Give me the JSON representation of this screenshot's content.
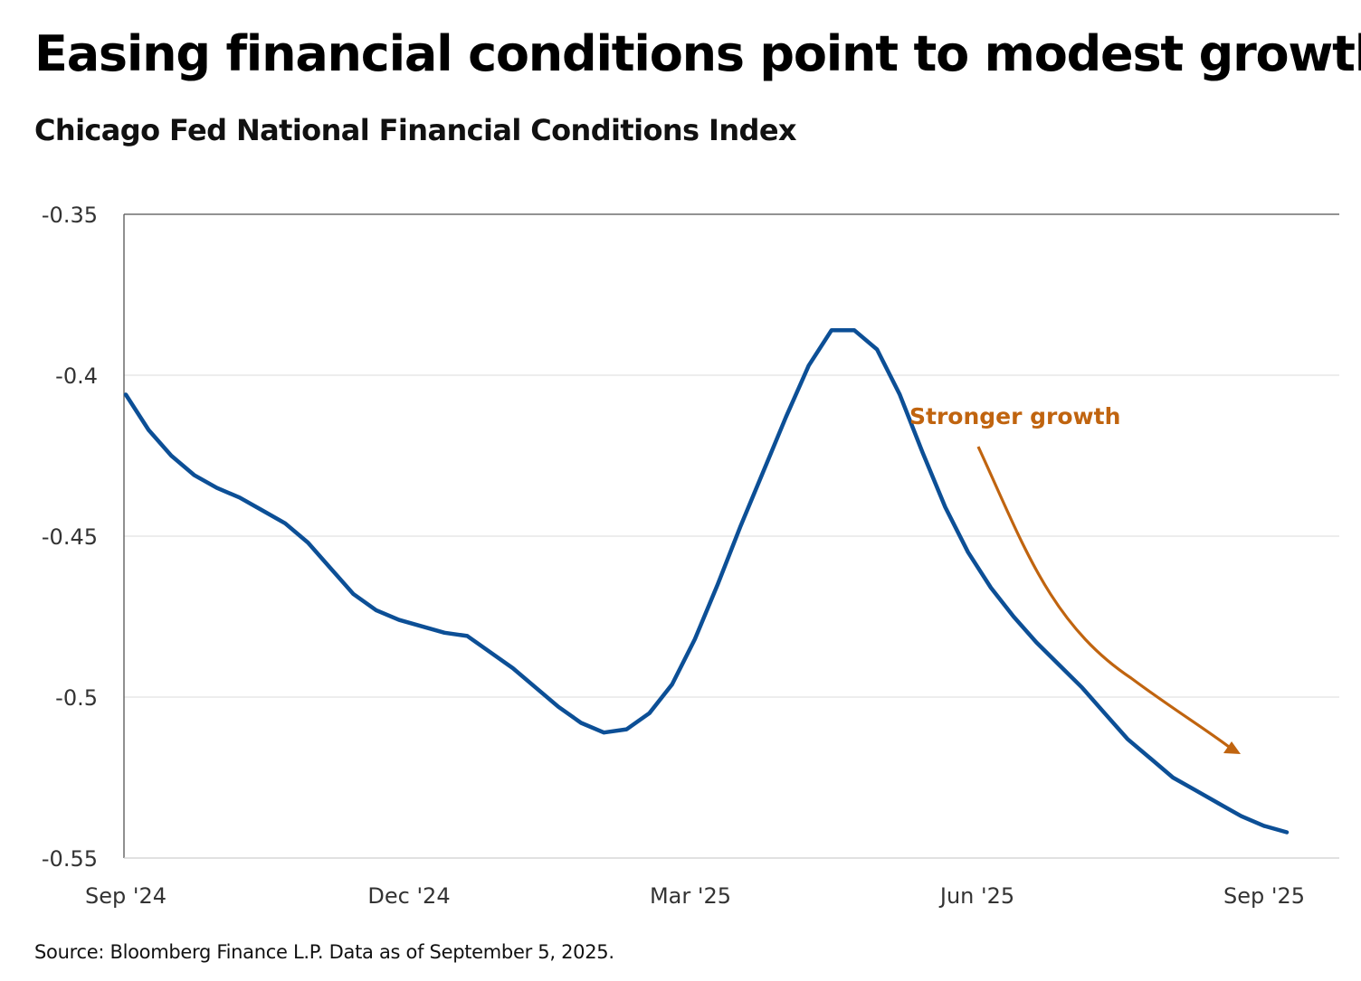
{
  "chart_data": {
    "type": "line",
    "title": "Easing financial conditions point to modest growth",
    "subtitle": "Chicago Fed National Financial Conditions Index",
    "xlabel": "",
    "ylabel": "",
    "x_ticks": [
      "Sep '24",
      "Dec '24",
      "Mar '25",
      "Jun '25",
      "Sep '25"
    ],
    "y_ticks": [
      "-0.35",
      "-0.4",
      "-0.45",
      "-0.5",
      "-0.55"
    ],
    "ylim": [
      -0.55,
      -0.35
    ],
    "grid": true,
    "series": [
      {
        "name": "Chicago Fed National Financial Conditions Index",
        "color": "#0c4f96",
        "x_weeks": [
          0,
          1,
          2,
          3,
          4,
          5,
          6,
          7,
          8,
          9,
          10,
          11,
          12,
          13,
          14,
          15,
          16,
          17,
          18,
          19,
          20,
          21,
          22,
          23,
          24,
          25,
          26,
          27,
          28,
          29,
          30,
          31,
          32,
          33,
          34,
          35,
          36,
          37,
          38,
          39,
          40,
          41,
          42,
          43,
          44,
          45,
          46,
          47,
          48,
          49,
          50,
          51
        ],
        "values": [
          -0.406,
          -0.417,
          -0.425,
          -0.431,
          -0.435,
          -0.438,
          -0.442,
          -0.446,
          -0.452,
          -0.46,
          -0.468,
          -0.473,
          -0.476,
          -0.478,
          -0.48,
          -0.481,
          -0.486,
          -0.491,
          -0.497,
          -0.503,
          -0.508,
          -0.511,
          -0.51,
          -0.505,
          -0.496,
          -0.482,
          -0.465,
          -0.447,
          -0.43,
          -0.413,
          -0.397,
          -0.386,
          -0.386,
          -0.392,
          -0.406,
          -0.424,
          -0.441,
          -0.455,
          -0.466,
          -0.475,
          -0.483,
          -0.49,
          -0.497,
          -0.505,
          -0.513,
          -0.519,
          -0.525,
          -0.529,
          -0.533,
          -0.537,
          -0.54,
          -0.542
        ]
      }
    ],
    "annotation": {
      "text": "Stronger growth",
      "color": "#c0640f"
    }
  },
  "source": "Source: Bloomberg Finance L.P. Data as of September 5, 2025."
}
